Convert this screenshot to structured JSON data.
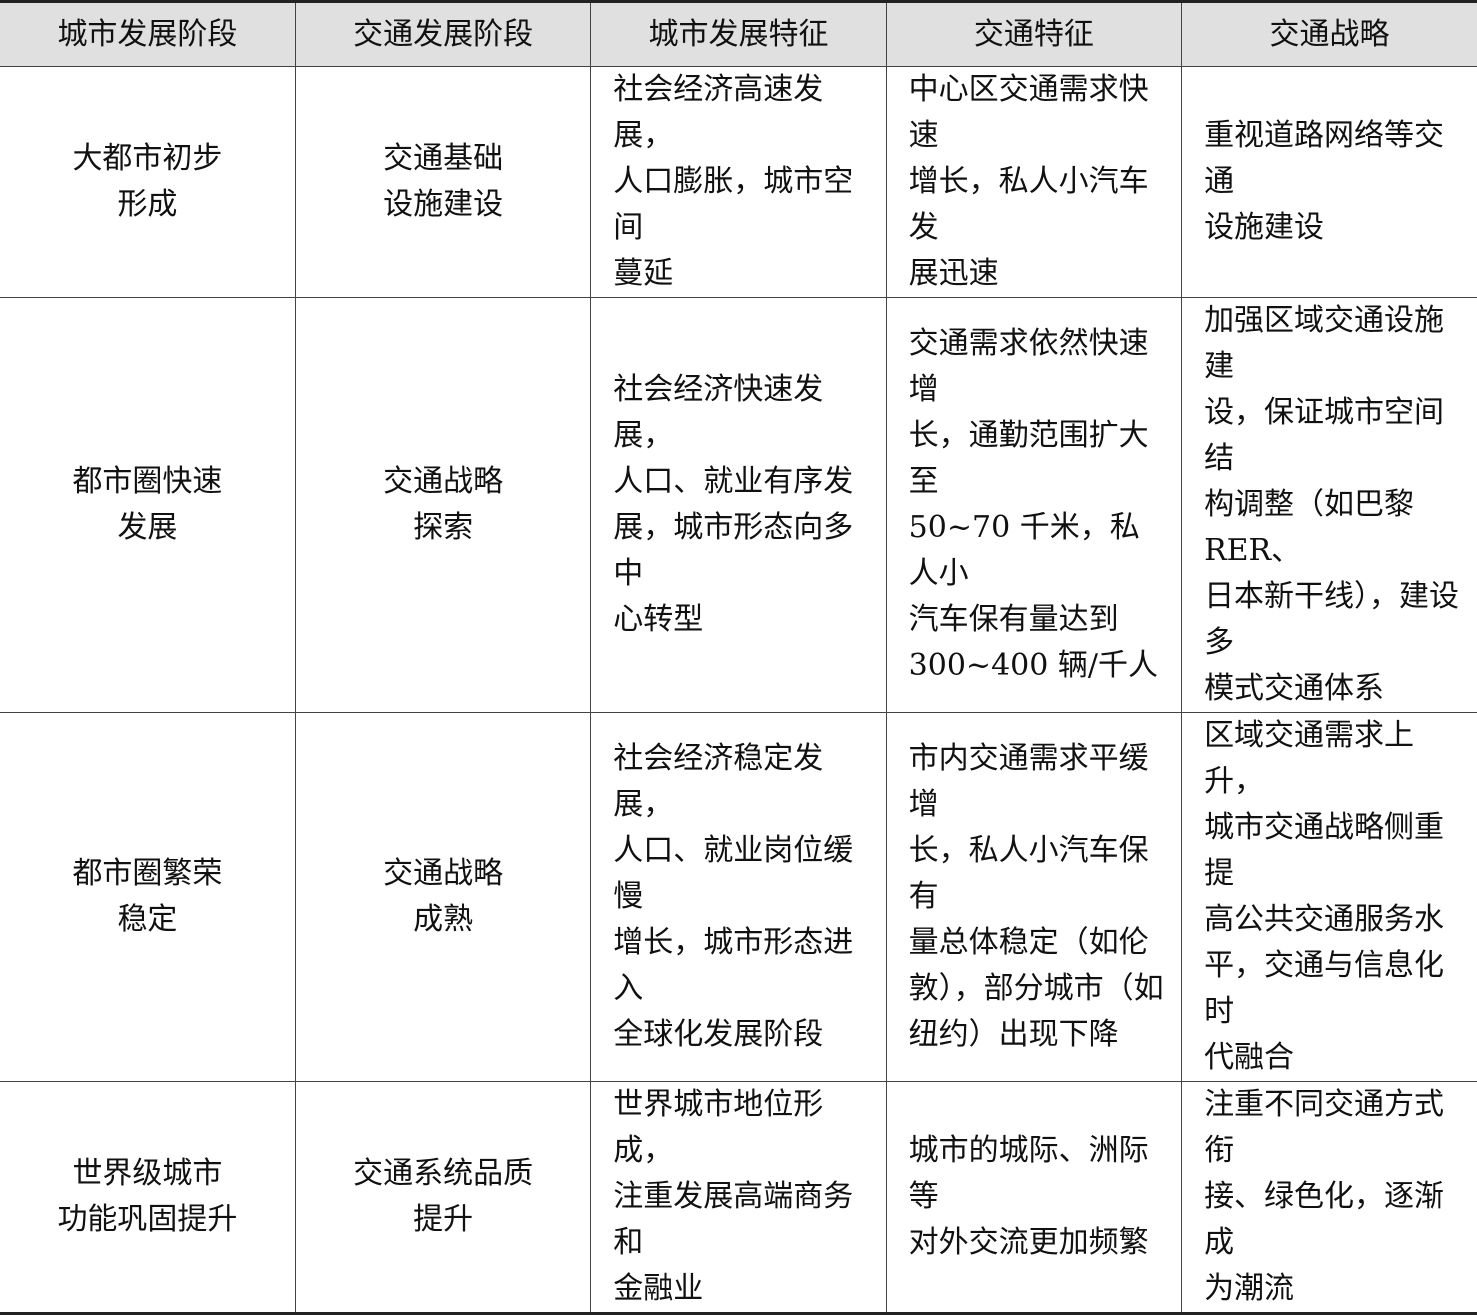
{
  "table": {
    "headers": [
      "城市发展阶段",
      "交通发展阶段",
      "城市发展特征",
      "交通特征",
      "交通战略"
    ],
    "rows": [
      [
        "大都市初步\n形成",
        "交通基础\n设施建设",
        "社会经济高速发展，\n人口膨胀，城市空间\n蔓延",
        "中心区交通需求快速\n增长，私人小汽车发\n展迅速",
        "重视道路网络等交通\n设施建设"
      ],
      [
        "都市圈快速\n发展",
        "交通战略\n探索",
        "社会经济快速发展，\n人口、就业有序发\n展，城市形态向多中\n心转型",
        "交通需求依然快速增\n长，通勤范围扩大至\n50~70 千米，私人小\n汽车保有量达到\n300~400 辆/千人",
        "加强区域交通设施建\n设，保证城市空间结\n构调整（如巴黎 RER、\n日本新干线），建设多\n模式交通体系"
      ],
      [
        "都市圈繁荣\n稳定",
        "交通战略\n成熟",
        "社会经济稳定发展，\n人口、就业岗位缓慢\n增长，城市形态进入\n全球化发展阶段",
        "市内交通需求平缓增\n长，私人小汽车保有\n量总体稳定（如伦\n敦），部分城市（如\n纽约）出现下降",
        "区域交通需求上升，\n城市交通战略侧重提\n高公共交通服务水\n平，交通与信息化时\n代融合"
      ],
      [
        "世界级城市\n功能巩固提升",
        "交通系统品质\n提升",
        "世界城市地位形成，\n注重发展高端商务和\n金融业",
        "城市的城际、洲际等\n对外交流更加频繁",
        "注重不同交通方式衔\n接、绿色化，逐渐成\n为潮流"
      ]
    ]
  }
}
